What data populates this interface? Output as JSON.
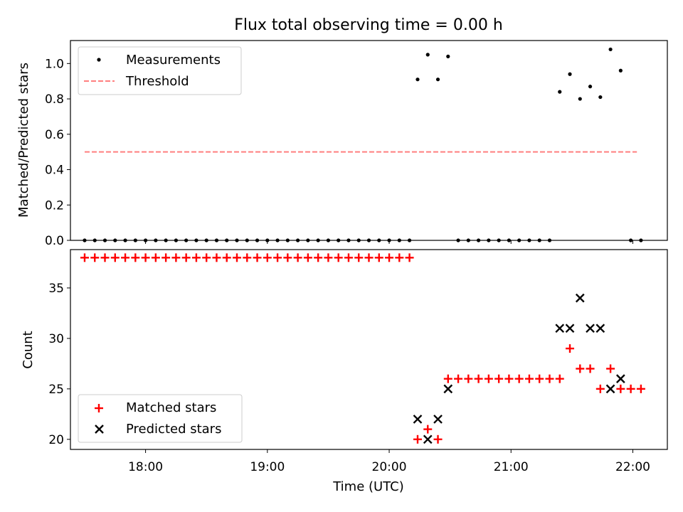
{
  "chart_data": [
    {
      "type": "scatter",
      "title": "Flux total observing time = 0.00 h",
      "xlabel": "",
      "ylabel": "Matched/Predicted stars",
      "xlim": [
        "17:23",
        "22:17"
      ],
      "ylim": [
        0,
        1.13
      ],
      "yticks": [
        0.0,
        0.2,
        0.4,
        0.6,
        0.8,
        1.0
      ],
      "ytick_labels": [
        "0.0",
        "0.2",
        "0.4",
        "0.6",
        "0.8",
        "1.0"
      ],
      "legend_position": "top-left",
      "grid": false,
      "series": [
        {
          "name": "Measurements",
          "marker": "dot",
          "color": "#000000",
          "points": [
            [
              "17:30",
              0
            ],
            [
              "17:35",
              0
            ],
            [
              "17:40",
              0
            ],
            [
              "17:45",
              0
            ],
            [
              "17:50",
              0
            ],
            [
              "17:55",
              0
            ],
            [
              "18:00",
              0
            ],
            [
              "18:05",
              0
            ],
            [
              "18:10",
              0
            ],
            [
              "18:15",
              0
            ],
            [
              "18:20",
              0
            ],
            [
              "18:25",
              0
            ],
            [
              "18:30",
              0
            ],
            [
              "18:35",
              0
            ],
            [
              "18:40",
              0
            ],
            [
              "18:45",
              0
            ],
            [
              "18:50",
              0
            ],
            [
              "18:55",
              0
            ],
            [
              "19:00",
              0
            ],
            [
              "19:05",
              0
            ],
            [
              "19:10",
              0
            ],
            [
              "19:15",
              0
            ],
            [
              "19:20",
              0
            ],
            [
              "19:25",
              0
            ],
            [
              "19:30",
              0
            ],
            [
              "19:35",
              0
            ],
            [
              "19:40",
              0
            ],
            [
              "19:45",
              0
            ],
            [
              "19:50",
              0
            ],
            [
              "19:55",
              0
            ],
            [
              "20:00",
              0
            ],
            [
              "20:05",
              0
            ],
            [
              "20:10",
              0
            ],
            [
              "20:14",
              0.91
            ],
            [
              "20:19",
              1.05
            ],
            [
              "20:24",
              0.91
            ],
            [
              "20:29",
              1.04
            ],
            [
              "20:34",
              0
            ],
            [
              "20:39",
              0
            ],
            [
              "20:44",
              0
            ],
            [
              "20:49",
              0
            ],
            [
              "20:54",
              0
            ],
            [
              "20:59",
              0
            ],
            [
              "21:04",
              0
            ],
            [
              "21:09",
              0
            ],
            [
              "21:14",
              0
            ],
            [
              "21:19",
              0
            ],
            [
              "21:24",
              0.84
            ],
            [
              "21:29",
              0.94
            ],
            [
              "21:34",
              0.8
            ],
            [
              "21:39",
              0.87
            ],
            [
              "21:44",
              0.81
            ],
            [
              "21:49",
              1.08
            ],
            [
              "21:54",
              0.96
            ],
            [
              "21:59",
              0
            ],
            [
              "22:04",
              0
            ]
          ]
        },
        {
          "name": "Threshold",
          "line": "dashed",
          "color": "#ff7f7f",
          "points": [
            [
              "17:30",
              0.5
            ],
            [
              "22:02",
              0.5
            ]
          ]
        }
      ]
    },
    {
      "type": "scatter",
      "title": "",
      "xlabel": "Time (UTC)",
      "ylabel": "Count",
      "xlim": [
        "17:23",
        "22:17"
      ],
      "ylim": [
        19.0,
        38.8
      ],
      "yticks": [
        20,
        25,
        30,
        35
      ],
      "ytick_labels": [
        "20",
        "25",
        "30",
        "35"
      ],
      "xticks": [
        "18:00",
        "19:00",
        "20:00",
        "21:00",
        "22:00"
      ],
      "legend_position": "bottom-left",
      "grid": false,
      "series": [
        {
          "name": "Matched stars",
          "marker": "plus",
          "color": "#ff0000",
          "points": [
            [
              "17:30",
              38
            ],
            [
              "17:35",
              38
            ],
            [
              "17:40",
              38
            ],
            [
              "17:45",
              38
            ],
            [
              "17:50",
              38
            ],
            [
              "17:55",
              38
            ],
            [
              "18:00",
              38
            ],
            [
              "18:05",
              38
            ],
            [
              "18:10",
              38
            ],
            [
              "18:15",
              38
            ],
            [
              "18:20",
              38
            ],
            [
              "18:25",
              38
            ],
            [
              "18:30",
              38
            ],
            [
              "18:35",
              38
            ],
            [
              "18:40",
              38
            ],
            [
              "18:45",
              38
            ],
            [
              "18:50",
              38
            ],
            [
              "18:55",
              38
            ],
            [
              "19:00",
              38
            ],
            [
              "19:05",
              38
            ],
            [
              "19:10",
              38
            ],
            [
              "19:15",
              38
            ],
            [
              "19:20",
              38
            ],
            [
              "19:25",
              38
            ],
            [
              "19:30",
              38
            ],
            [
              "19:35",
              38
            ],
            [
              "19:40",
              38
            ],
            [
              "19:45",
              38
            ],
            [
              "19:50",
              38
            ],
            [
              "19:55",
              38
            ],
            [
              "20:00",
              38
            ],
            [
              "20:05",
              38
            ],
            [
              "20:10",
              38
            ],
            [
              "20:14",
              20
            ],
            [
              "20:19",
              21
            ],
            [
              "20:24",
              20
            ],
            [
              "20:29",
              26
            ],
            [
              "20:34",
              26
            ],
            [
              "20:39",
              26
            ],
            [
              "20:44",
              26
            ],
            [
              "20:49",
              26
            ],
            [
              "20:54",
              26
            ],
            [
              "20:59",
              26
            ],
            [
              "21:04",
              26
            ],
            [
              "21:09",
              26
            ],
            [
              "21:14",
              26
            ],
            [
              "21:19",
              26
            ],
            [
              "21:24",
              26
            ],
            [
              "21:29",
              29
            ],
            [
              "21:34",
              27
            ],
            [
              "21:39",
              27
            ],
            [
              "21:44",
              25
            ],
            [
              "21:49",
              27
            ],
            [
              "21:54",
              25
            ],
            [
              "21:59",
              25
            ],
            [
              "22:04",
              25
            ]
          ]
        },
        {
          "name": "Predicted stars",
          "marker": "x",
          "color": "#000000",
          "points": [
            [
              "20:14",
              22
            ],
            [
              "20:19",
              20
            ],
            [
              "20:24",
              22
            ],
            [
              "20:29",
              25
            ],
            [
              "21:24",
              31
            ],
            [
              "21:29",
              31
            ],
            [
              "21:34",
              34
            ],
            [
              "21:39",
              31
            ],
            [
              "21:44",
              31
            ],
            [
              "21:49",
              25
            ],
            [
              "21:54",
              26
            ]
          ]
        }
      ]
    }
  ]
}
